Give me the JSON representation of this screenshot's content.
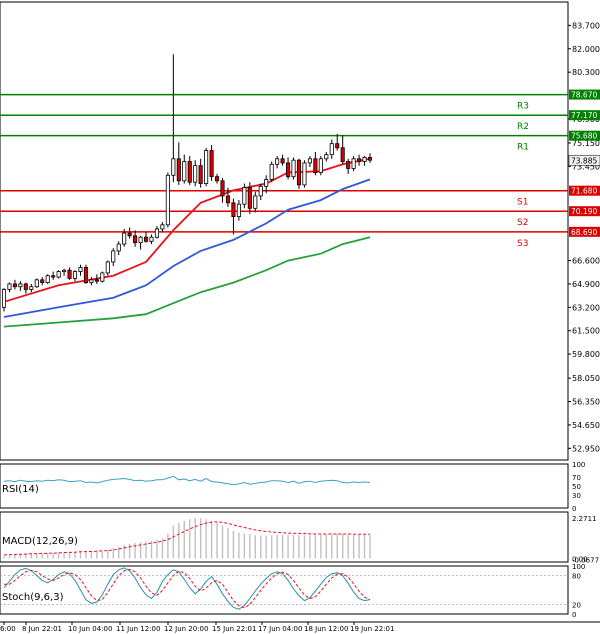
{
  "colors": {
    "background": "#ffffff",
    "frame": "#000000",
    "resistance": "#008000",
    "support": "#dd0000",
    "price_label_bg": "#f2f2f2",
    "sma_fast": "#e8111b",
    "sma_mid": "#2f59d6",
    "sma_slow": "#26a03f",
    "candle_bull": "#ffffff",
    "candle_bear": "#dd0000",
    "rsi_line": "#3aa0c8",
    "macd_hist": "#c0c0c0",
    "macd_signal": "#e8111b",
    "stoch_main": "#2a8fb0",
    "stoch_signal": "#e8111b"
  },
  "chart_data": [
    {
      "type": "candlestick",
      "panel": "price",
      "ylim": [
        52.1,
        85.4
      ],
      "y_ticks": [
        "83.700",
        "82.000",
        "80.300",
        "78.670",
        "77.170",
        "76.900",
        "75.680",
        "75.150",
        "73.885",
        "73.450",
        "71.680",
        "70.190",
        "68.690",
        "66.600",
        "64.900",
        "63.200",
        "61.500",
        "59.800",
        "58.050",
        "56.350",
        "54.650",
        "52.950"
      ],
      "x_ticks": [
        "6:00",
        "8 Jun 22:01",
        "10 Jun 04:00",
        "11 Jun 12:00",
        "12 Jun 20:00",
        "15 Jun 22:01",
        "17 Jun 04:00",
        "18 Jun 12:00",
        "19 Jun 22:01"
      ],
      "current_price": "73.885",
      "levels": [
        {
          "name": "R3",
          "value": 78.67,
          "label": "78.670",
          "kind": "resistance"
        },
        {
          "name": "R2",
          "value": 77.17,
          "label": "77.170",
          "kind": "resistance"
        },
        {
          "name": "R1",
          "value": 75.68,
          "label": "75.680",
          "kind": "resistance"
        },
        {
          "name": "S1",
          "value": 71.68,
          "label": "71.680",
          "kind": "support"
        },
        {
          "name": "S2",
          "value": 70.19,
          "label": "70.190",
          "kind": "support"
        },
        {
          "name": "S3",
          "value": 68.69,
          "label": "68.690",
          "kind": "support"
        }
      ],
      "candles": [
        [
          63.2,
          64.6,
          62.9,
          64.5
        ],
        [
          64.5,
          65.0,
          64.3,
          64.9
        ],
        [
          64.9,
          65.2,
          64.5,
          64.7
        ],
        [
          64.7,
          65.1,
          64.4,
          64.9
        ],
        [
          64.9,
          65.0,
          64.2,
          64.5
        ],
        [
          64.5,
          64.9,
          64.3,
          64.7
        ],
        [
          64.7,
          65.3,
          64.6,
          65.2
        ],
        [
          65.2,
          65.4,
          64.8,
          65.0
        ],
        [
          65.0,
          65.6,
          64.9,
          65.5
        ],
        [
          65.5,
          65.8,
          65.2,
          65.4
        ],
        [
          65.4,
          65.9,
          65.3,
          65.8
        ],
        [
          65.8,
          66.0,
          65.5,
          65.9
        ],
        [
          65.9,
          66.1,
          65.2,
          65.3
        ],
        [
          65.3,
          65.9,
          65.1,
          65.8
        ],
        [
          65.8,
          66.3,
          65.5,
          66.1
        ],
        [
          66.1,
          66.3,
          64.9,
          65.0
        ],
        [
          65.0,
          65.4,
          64.8,
          65.2
        ],
        [
          65.2,
          65.6,
          64.9,
          65.1
        ],
        [
          65.1,
          65.8,
          65.0,
          65.7
        ],
        [
          65.7,
          66.6,
          65.5,
          66.5
        ],
        [
          66.5,
          67.5,
          66.2,
          67.3
        ],
        [
          67.3,
          68.0,
          67.0,
          67.8
        ],
        [
          67.8,
          68.9,
          67.6,
          68.6
        ],
        [
          68.6,
          69.0,
          68.2,
          68.4
        ],
        [
          68.4,
          68.8,
          67.6,
          67.9
        ],
        [
          67.9,
          68.4,
          67.4,
          68.3
        ],
        [
          68.3,
          68.7,
          67.9,
          68.0
        ],
        [
          68.0,
          68.5,
          67.8,
          68.3
        ],
        [
          68.3,
          69.1,
          68.2,
          68.9
        ],
        [
          68.9,
          69.4,
          68.7,
          69.2
        ],
        [
          69.2,
          73.0,
          69.0,
          72.8
        ],
        [
          72.8,
          81.6,
          72.3,
          74.0
        ],
        [
          74.0,
          75.2,
          72.1,
          72.4
        ],
        [
          72.4,
          74.3,
          72.2,
          73.8
        ],
        [
          73.8,
          74.2,
          72.1,
          72.3
        ],
        [
          72.3,
          73.9,
          72.0,
          73.5
        ],
        [
          73.5,
          74.0,
          71.9,
          72.2
        ],
        [
          72.2,
          74.8,
          72.0,
          74.6
        ],
        [
          74.6,
          75.0,
          72.4,
          72.7
        ],
        [
          72.7,
          72.9,
          72.2,
          72.4
        ],
        [
          72.4,
          72.6,
          70.8,
          71.3
        ],
        [
          71.3,
          71.9,
          70.5,
          70.8
        ],
        [
          70.8,
          71.1,
          68.5,
          69.8
        ],
        [
          69.8,
          71.0,
          69.5,
          70.7
        ],
        [
          70.7,
          72.2,
          70.4,
          71.9
        ],
        [
          71.9,
          72.3,
          70.0,
          70.4
        ],
        [
          70.4,
          71.6,
          70.1,
          71.3
        ],
        [
          71.3,
          72.2,
          71.0,
          72.0
        ],
        [
          72.0,
          72.8,
          71.5,
          72.5
        ],
        [
          72.5,
          73.8,
          72.3,
          73.6
        ],
        [
          73.6,
          74.2,
          73.3,
          74.0
        ],
        [
          74.0,
          74.3,
          73.5,
          73.7
        ],
        [
          73.7,
          74.1,
          72.5,
          72.7
        ],
        [
          72.7,
          74.1,
          72.5,
          73.9
        ],
        [
          73.9,
          74.0,
          71.8,
          72.1
        ],
        [
          72.1,
          73.9,
          71.9,
          73.7
        ],
        [
          73.7,
          74.2,
          73.4,
          74.0
        ],
        [
          74.0,
          74.5,
          72.8,
          73.0
        ],
        [
          73.0,
          74.2,
          72.8,
          74.0
        ],
        [
          74.0,
          74.5,
          73.8,
          74.3
        ],
        [
          74.3,
          75.4,
          74.0,
          75.1
        ],
        [
          75.1,
          75.8,
          74.6,
          74.8
        ],
        [
          74.8,
          75.7,
          73.6,
          73.8
        ],
        [
          73.8,
          74.0,
          72.9,
          73.3
        ],
        [
          73.3,
          74.2,
          73.1,
          74.0
        ],
        [
          74.0,
          74.3,
          73.5,
          73.8
        ],
        [
          73.8,
          74.2,
          73.5,
          74.1
        ],
        [
          74.1,
          74.4,
          73.7,
          73.9
        ]
      ],
      "sma_fast_anchors": [
        [
          0,
          63.6
        ],
        [
          10,
          64.8
        ],
        [
          20,
          65.5
        ],
        [
          26,
          66.5
        ],
        [
          31,
          68.8
        ],
        [
          36,
          70.8
        ],
        [
          42,
          71.7
        ],
        [
          48,
          72.2
        ],
        [
          52,
          73.0
        ],
        [
          58,
          73.1
        ],
        [
          62,
          73.6
        ],
        [
          67,
          74.0
        ]
      ],
      "sma_mid_anchors": [
        [
          0,
          62.5
        ],
        [
          10,
          63.2
        ],
        [
          20,
          63.9
        ],
        [
          26,
          64.8
        ],
        [
          31,
          66.2
        ],
        [
          36,
          67.3
        ],
        [
          42,
          68.1
        ],
        [
          48,
          69.3
        ],
        [
          52,
          70.3
        ],
        [
          58,
          71.0
        ],
        [
          62,
          71.8
        ],
        [
          67,
          72.5
        ]
      ],
      "sma_slow_anchors": [
        [
          0,
          61.8
        ],
        [
          10,
          62.1
        ],
        [
          20,
          62.4
        ],
        [
          26,
          62.7
        ],
        [
          31,
          63.5
        ],
        [
          36,
          64.3
        ],
        [
          42,
          65.0
        ],
        [
          48,
          65.9
        ],
        [
          52,
          66.6
        ],
        [
          58,
          67.1
        ],
        [
          62,
          67.8
        ],
        [
          67,
          68.3
        ]
      ]
    },
    {
      "type": "line",
      "panel": "rsi",
      "label": "RSI(14)",
      "ylim": [
        0,
        100
      ],
      "y_ticks": [
        "100",
        "70",
        "50",
        "30",
        "0"
      ],
      "values": [
        61,
        62,
        60,
        63,
        61,
        60,
        62,
        61,
        63,
        62,
        64,
        63,
        60,
        61,
        62,
        58,
        59,
        57,
        60,
        63,
        65,
        66,
        67,
        65,
        62,
        63,
        61,
        62,
        64,
        64,
        68,
        72,
        64,
        66,
        62,
        65,
        61,
        67,
        60,
        59,
        57,
        55,
        53,
        55,
        58,
        54,
        56,
        58,
        59,
        62,
        62,
        61,
        58,
        61,
        56,
        60,
        61,
        58,
        61,
        62,
        63,
        62,
        58,
        57,
        59,
        58,
        59,
        58
      ]
    },
    {
      "type": "bar",
      "panel": "macd",
      "label": "MACD(12,26,9)",
      "y_ticks": [
        "2.2711",
        "0.00",
        "-0.0677"
      ],
      "ylim": [
        -0.2,
        2.6
      ],
      "histogram": [
        0.15,
        0.17,
        0.2,
        0.22,
        0.23,
        0.24,
        0.26,
        0.27,
        0.29,
        0.31,
        0.33,
        0.35,
        0.36,
        0.37,
        0.4,
        0.41,
        0.42,
        0.43,
        0.45,
        0.5,
        0.58,
        0.66,
        0.75,
        0.82,
        0.86,
        0.9,
        0.94,
        0.98,
        1.05,
        1.12,
        1.4,
        1.85,
        2.0,
        2.1,
        2.2,
        2.27,
        2.25,
        2.2,
        2.1,
        2.0,
        1.85,
        1.7,
        1.55,
        1.45,
        1.4,
        1.35,
        1.3,
        1.28,
        1.28,
        1.3,
        1.32,
        1.33,
        1.32,
        1.32,
        1.3,
        1.3,
        1.31,
        1.31,
        1.32,
        1.33,
        1.36,
        1.38,
        1.37,
        1.35,
        1.33,
        1.32,
        1.31,
        1.3
      ],
      "signal": [
        0.2,
        0.21,
        0.22,
        0.23,
        0.25,
        0.26,
        0.27,
        0.28,
        0.29,
        0.3,
        0.31,
        0.33,
        0.34,
        0.35,
        0.37,
        0.38,
        0.39,
        0.41,
        0.42,
        0.44,
        0.48,
        0.53,
        0.59,
        0.65,
        0.7,
        0.76,
        0.81,
        0.86,
        0.91,
        0.97,
        1.06,
        1.21,
        1.36,
        1.51,
        1.65,
        1.78,
        1.89,
        1.98,
        2.03,
        2.05,
        2.02,
        1.96,
        1.88,
        1.8,
        1.73,
        1.66,
        1.6,
        1.55,
        1.51,
        1.48,
        1.46,
        1.44,
        1.42,
        1.41,
        1.4,
        1.39,
        1.38,
        1.37,
        1.37,
        1.37,
        1.37,
        1.37,
        1.37,
        1.37,
        1.36,
        1.35,
        1.35,
        1.35
      ]
    },
    {
      "type": "line",
      "panel": "stochastic",
      "label": "Stoch(9,6,3)",
      "ylim": [
        0,
        100
      ],
      "y_ticks": [
        "100",
        "80",
        "20",
        "0"
      ],
      "main": [
        55,
        68,
        82,
        92,
        95,
        90,
        80,
        70,
        65,
        72,
        82,
        88,
        84,
        70,
        50,
        30,
        22,
        25,
        40,
        62,
        82,
        92,
        96,
        90,
        75,
        55,
        40,
        32,
        45,
        68,
        82,
        92,
        88,
        72,
        55,
        42,
        52,
        68,
        78,
        62,
        42,
        26,
        14,
        10,
        18,
        32,
        48,
        62,
        74,
        84,
        88,
        84,
        70,
        52,
        38,
        28,
        34,
        48,
        62,
        76,
        84,
        86,
        80,
        64,
        46,
        32,
        28,
        30
      ],
      "signal": [
        62,
        62,
        70,
        80,
        88,
        91,
        88,
        80,
        73,
        70,
        75,
        82,
        86,
        82,
        72,
        55,
        38,
        28,
        30,
        45,
        63,
        80,
        90,
        93,
        88,
        75,
        58,
        44,
        39,
        49,
        65,
        80,
        89,
        86,
        74,
        58,
        48,
        54,
        65,
        70,
        62,
        45,
        28,
        17,
        13,
        20,
        34,
        49,
        63,
        75,
        84,
        87,
        82,
        70,
        54,
        40,
        32,
        36,
        48,
        62,
        75,
        83,
        84,
        77,
        63,
        47,
        35,
        30
      ]
    }
  ]
}
